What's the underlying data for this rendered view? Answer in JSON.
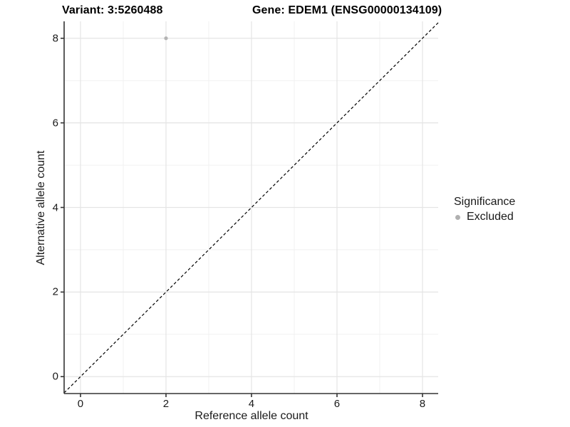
{
  "title": {
    "variant": "Variant: 3:5260488",
    "gene": "Gene: EDEM1 (ENSG00000134109)"
  },
  "axes": {
    "x_label": "Reference allele count",
    "y_label": "Alternative allele count"
  },
  "legend": {
    "title": "Significance",
    "items": [
      {
        "label": "Excluded",
        "color": "#b0b0b0"
      }
    ]
  },
  "colors": {
    "background": "#ffffff",
    "grid_major": "#e4e4e4",
    "grid_minor": "#f1f1f1",
    "axis_line": "#333333",
    "tick_mark": "#333333",
    "tick_text": "#1a1a1a",
    "reference_line": "#000000",
    "point": "#b4b4b4"
  },
  "chart_data": {
    "type": "scatter",
    "title": "Variant: 3:5260488   Gene: EDEM1 (ENSG00000134109)",
    "xlabel": "Reference allele count",
    "ylabel": "Alternative allele count",
    "xlim": [
      -0.383,
      8.367
    ],
    "ylim": [
      -0.4,
      8.4
    ],
    "x_ticks": [
      0,
      2,
      4,
      6,
      8
    ],
    "y_ticks": [
      0,
      2,
      4,
      6,
      8
    ],
    "x_minor_ticks": [
      1,
      3,
      5,
      7
    ],
    "y_minor_ticks": [
      1,
      3,
      5,
      7
    ],
    "grid": "major+minor",
    "legend_position": "right",
    "legend_title": "Significance",
    "series": [
      {
        "name": "Excluded",
        "color": "#b4b4b4",
        "point_radius": 2.6,
        "points": [
          {
            "x": 2,
            "y": 8
          }
        ]
      }
    ],
    "reference_line": {
      "kind": "identity y=x",
      "style": "dashed",
      "color": "#000000"
    }
  }
}
